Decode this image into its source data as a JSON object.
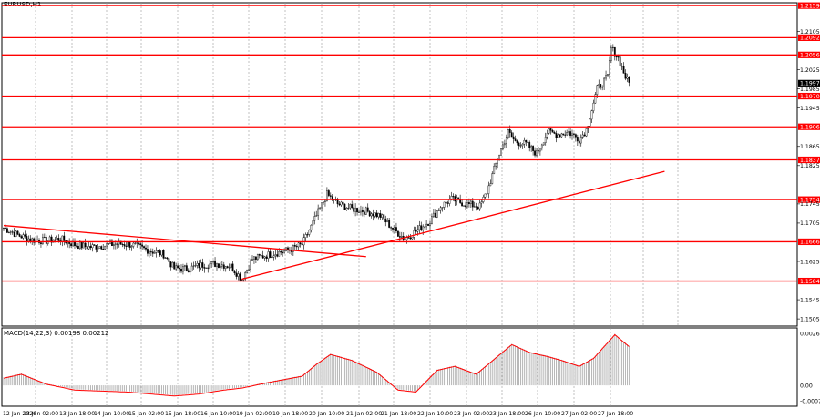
{
  "symbol_label": "EURUSD,H1",
  "macd_label": "MACD(14,22,3) 0.00198 0.00212",
  "colors": {
    "level_line": "#ff0000",
    "macd_bar": "#b0b0b0",
    "macd_signal": "#ff0000",
    "candle": "#000000",
    "grid": "#9a9a9a",
    "current_price_bg": "#000000"
  },
  "chart_data": {
    "type": "candlestick",
    "price_axis": {
      "min": 1.549,
      "max": 1.2165,
      "ticks": [
        "1.2105",
        "1.2025",
        "1.1985",
        "1.1945",
        "1.1865",
        "1.1825",
        "1.1745",
        "1.1705",
        "1.1625",
        "1.1545",
        "1.1505"
      ]
    },
    "time_axis": {
      "labels": [
        "12 Jan 2026",
        "13 Jan 02:00",
        "13 Jan 18:00",
        "14 Jan 10:00",
        "15 Jan 02:00",
        "15 Jan 18:00",
        "16 Jan 10:00",
        "19 Jan 02:00",
        "19 Jan 18:00",
        "20 Jan 10:00",
        "21 Jan 02:00",
        "21 Jan 18:00",
        "22 Jan 10:00",
        "23 Jan 02:00",
        "23 Jan 18:00",
        "26 Jan 10:00",
        "27 Jan 02:00",
        "27 Jan 18:00"
      ]
    },
    "levels": [
      {
        "label": "1.2159",
        "value": 1.2159
      },
      {
        "label": "1.2092",
        "value": 1.2092
      },
      {
        "label": "1.2056",
        "value": 1.2056
      },
      {
        "label": "1.1970",
        "value": 1.197
      },
      {
        "label": "1.1906",
        "value": 1.1906
      },
      {
        "label": "1.1837",
        "value": 1.1837
      },
      {
        "label": "1.1754",
        "value": 1.1754
      },
      {
        "label": "1.1666",
        "value": 1.1666
      },
      {
        "label": "1.1584",
        "value": 1.1584
      }
    ],
    "current_price": {
      "label": "1.1997",
      "value": 1.1997
    },
    "trendlines": [
      {
        "from_bar": 0,
        "from_price": 1.17,
        "to_bar": 204,
        "to_price": 1.1635
      },
      {
        "from_bar": 134,
        "from_price": 1.1588,
        "to_bar": 372,
        "to_price": 1.1813
      }
    ],
    "macd": {
      "max_label": "0.00263",
      "zero_label": "0.00",
      "min_label": "-0.00078",
      "max": 0.00263,
      "min": -0.00078
    },
    "anchors": [
      [
        0,
        1.1695
      ],
      [
        8,
        1.168
      ],
      [
        16,
        1.167
      ],
      [
        24,
        1.1668
      ],
      [
        32,
        1.1672
      ],
      [
        40,
        1.166
      ],
      [
        48,
        1.1655
      ],
      [
        56,
        1.1658
      ],
      [
        64,
        1.1662
      ],
      [
        72,
        1.166
      ],
      [
        80,
        1.165
      ],
      [
        90,
        1.164
      ],
      [
        96,
        1.161
      ],
      [
        104,
        1.161
      ],
      [
        112,
        1.1618
      ],
      [
        120,
        1.162
      ],
      [
        128,
        1.1615
      ],
      [
        134,
        1.1588
      ],
      [
        140,
        1.163
      ],
      [
        150,
        1.164
      ],
      [
        160,
        1.1648
      ],
      [
        168,
        1.166
      ],
      [
        176,
        1.172
      ],
      [
        182,
        1.1765
      ],
      [
        188,
        1.1745
      ],
      [
        196,
        1.1735
      ],
      [
        204,
        1.173
      ],
      [
        212,
        1.172
      ],
      [
        220,
        1.169
      ],
      [
        226,
        1.1672
      ],
      [
        232,
        1.1688
      ],
      [
        240,
        1.171
      ],
      [
        246,
        1.174
      ],
      [
        252,
        1.1755
      ],
      [
        260,
        1.1745
      ],
      [
        268,
        1.174
      ],
      [
        272,
        1.177
      ],
      [
        278,
        1.184
      ],
      [
        284,
        1.1895
      ],
      [
        288,
        1.1875
      ],
      [
        294,
        1.187
      ],
      [
        300,
        1.185
      ],
      [
        306,
        1.1895
      ],
      [
        312,
        1.189
      ],
      [
        318,
        1.1895
      ],
      [
        324,
        1.188
      ],
      [
        328,
        1.19
      ],
      [
        334,
        1.1985
      ],
      [
        340,
        1.201
      ],
      [
        342,
        1.207
      ],
      [
        346,
        1.205
      ],
      [
        350,
        1.201
      ],
      [
        352,
        1.1997
      ]
    ]
  }
}
